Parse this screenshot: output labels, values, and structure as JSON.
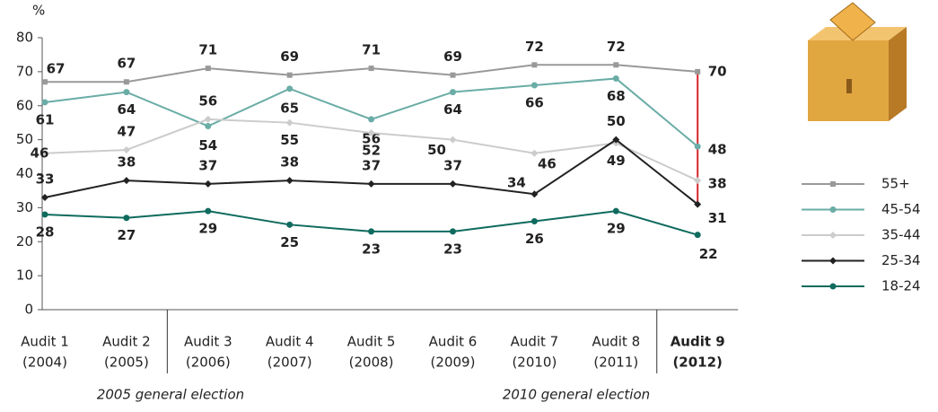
{
  "chart_data": {
    "type": "line",
    "y_axis_label": "%",
    "categories": [
      "Audit 1",
      "Audit 2",
      "Audit 3",
      "Audit 4",
      "Audit 5",
      "Audit 6",
      "Audit 7",
      "Audit 8",
      "Audit 9"
    ],
    "category_years": [
      "(2004)",
      "(2005)",
      "(2006)",
      "(2007)",
      "(2008)",
      "(2009)",
      "(2010)",
      "(2011)",
      "(2012)"
    ],
    "series": [
      {
        "name": "55+",
        "color": "#999999",
        "values": [
          67,
          67,
          71,
          69,
          71,
          69,
          72,
          72,
          70
        ]
      },
      {
        "name": "45-54",
        "color": "#6aaca6",
        "values": [
          61,
          64,
          54,
          65,
          56,
          64,
          66,
          68,
          48
        ]
      },
      {
        "name": "35-44",
        "color": "#cccccc",
        "values": [
          46,
          47,
          56,
          55,
          52,
          50,
          46,
          49,
          38
        ]
      },
      {
        "name": "25-34",
        "color": "#222222",
        "values": [
          33,
          38,
          37,
          38,
          37,
          37,
          34,
          50,
          31
        ]
      },
      {
        "name": "18-24",
        "color": "#0f6b5e",
        "values": [
          28,
          27,
          29,
          25,
          23,
          23,
          26,
          29,
          22
        ]
      }
    ],
    "ylim": [
      0,
      80
    ],
    "yticks": [
      0,
      10,
      20,
      30,
      40,
      50,
      60,
      70,
      80
    ],
    "annotations": [
      "2005 general election",
      "2010 general election"
    ]
  }
}
